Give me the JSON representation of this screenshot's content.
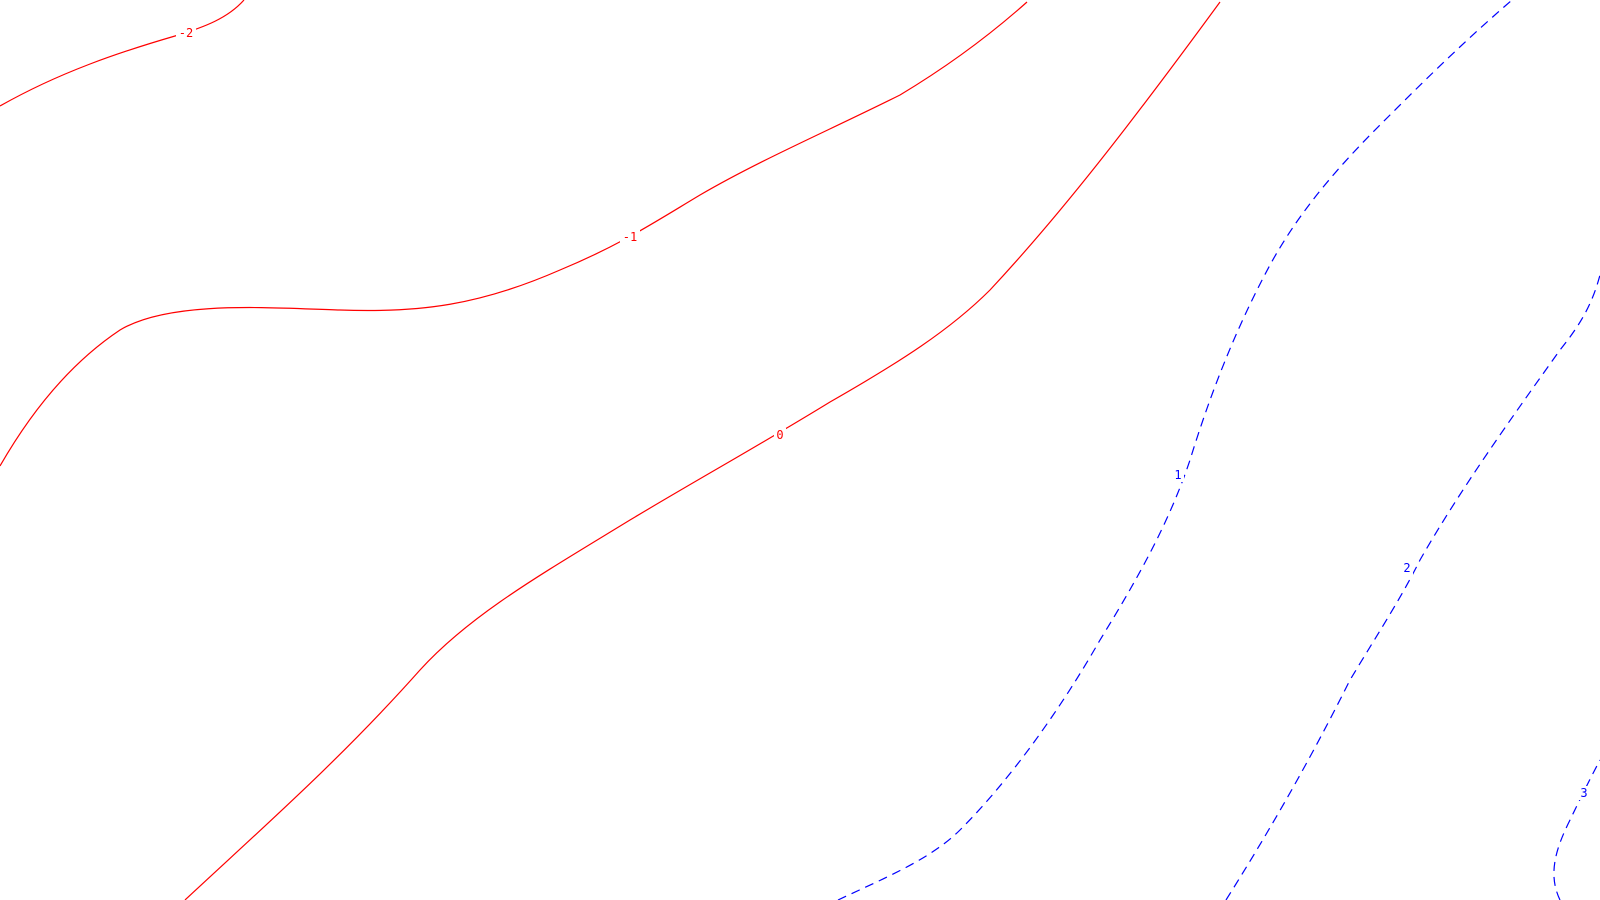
{
  "chart_data": {
    "type": "contour",
    "title": "",
    "xlabel": "",
    "ylabel": "",
    "grid": false,
    "legend": "none",
    "colors": {
      "negative": "#ff0000",
      "positive": "#0000ff"
    },
    "line_styles": {
      "negative": "solid",
      "positive": "dashed"
    },
    "levels": [
      {
        "value": -2,
        "label": "-2",
        "sign": "negative"
      },
      {
        "value": -1,
        "label": "-1",
        "sign": "negative"
      },
      {
        "value": 0,
        "label": "0",
        "sign": "negative"
      },
      {
        "value": 1,
        "label": "1",
        "sign": "positive"
      },
      {
        "value": 2,
        "label": "2",
        "sign": "positive"
      },
      {
        "value": 3,
        "label": "3",
        "sign": "positive"
      }
    ]
  }
}
